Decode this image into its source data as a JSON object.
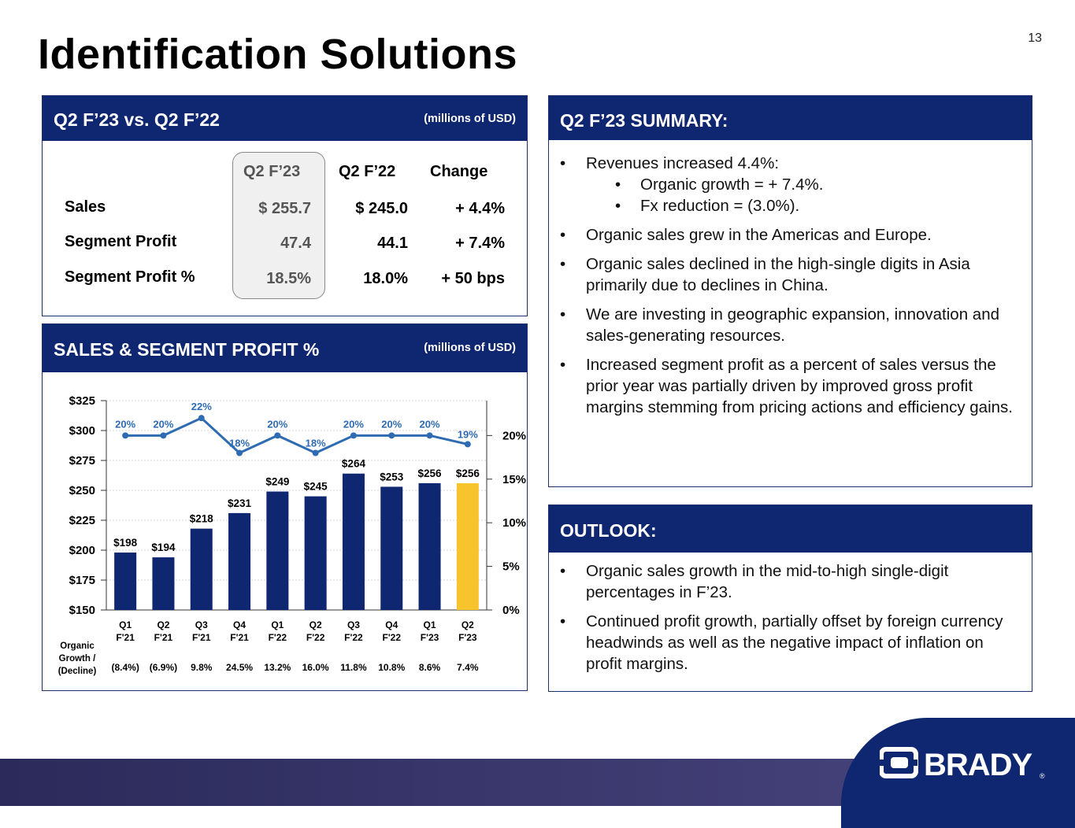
{
  "page_title": "Identification Solutions",
  "page_number": "13",
  "comparison": {
    "heading": "Q2 F’23 vs. Q2 F’22",
    "unit": "(millions of USD)",
    "columns": [
      "Q2 F’23",
      "Q2 F’22",
      "Change"
    ],
    "rows": [
      {
        "label": "Sales",
        "current": "$ 255.7",
        "prior": "$ 245.0",
        "change": "+ 4.4%"
      },
      {
        "label": "Segment Profit",
        "current": "47.4",
        "prior": "44.1",
        "change": "+ 7.4%"
      },
      {
        "label": "Segment Profit %",
        "current": "18.5%",
        "prior": "18.0%",
        "change": "+ 50 bps"
      }
    ]
  },
  "sales_panel": {
    "heading": "SALES & SEGMENT PROFIT %",
    "unit": "(millions of USD)"
  },
  "chart_data": {
    "type": "bar",
    "categories": [
      [
        "Q1",
        "F'21"
      ],
      [
        "Q2",
        "F'21"
      ],
      [
        "Q3",
        "F'21"
      ],
      [
        "Q4",
        "F'21"
      ],
      [
        "Q1",
        "F'22"
      ],
      [
        "Q2",
        "F'22"
      ],
      [
        "Q3",
        "F'22"
      ],
      [
        "Q4",
        "F'22"
      ],
      [
        "Q1",
        "F'23"
      ],
      [
        "Q2",
        "F'23"
      ]
    ],
    "series": [
      {
        "type": "bar",
        "values": [
          198,
          194,
          218,
          231,
          249,
          245,
          264,
          253,
          256,
          256
        ],
        "labels": [
          "$198",
          "$194",
          "$218",
          "$231",
          "$249",
          "$245",
          "$264",
          "$253",
          "$256",
          "$256"
        ],
        "color": "#0f2670",
        "highlight_color": "#f7c42d",
        "highlight_index": 9
      },
      {
        "type": "line",
        "axis": "right",
        "values": [
          20,
          20,
          22,
          18,
          20,
          18,
          20,
          20,
          20,
          19
        ],
        "labels": [
          "20%",
          "20%",
          "22%",
          "18%",
          "20%",
          "18%",
          "20%",
          "20%",
          "20%",
          "19%"
        ],
        "color": "#2e6bb3"
      }
    ],
    "y_left": {
      "ylim": [
        150,
        325
      ],
      "ticks": [
        "$150",
        "$175",
        "$200",
        "$225",
        "$250",
        "$275",
        "$300",
        "$325"
      ]
    },
    "y_right": {
      "ylim": [
        0,
        24
      ],
      "ticks": [
        "0%",
        "5%",
        "10%",
        "15%",
        "20%"
      ]
    },
    "organic_growth_label": [
      "Organic",
      "Growth /",
      "(Decline)"
    ],
    "organic_growth": [
      "(8.4%)",
      "(6.9%)",
      "9.8%",
      "24.5%",
      "13.2%",
      "16.0%",
      "11.8%",
      "10.8%",
      "8.6%",
      "7.4%"
    ],
    "grid": true
  },
  "summary": {
    "heading": "Q2 F’23 SUMMARY:",
    "bullets": [
      "Revenues increased 4.4%:",
      "Organic sales grew in the Americas and Europe.",
      "Organic sales declined in the high-single digits in Asia primarily due to declines in China.",
      "We are investing in geographic expansion, innovation and sales-generating resources.",
      "Increased segment profit as a percent of sales versus the prior year was partially driven by improved gross profit margins stemming from pricing actions and efficiency gains."
    ],
    "sub_bullets": [
      "Organic growth = + 7.4%.",
      "Fx reduction = (3.0%)."
    ]
  },
  "outlook": {
    "heading": "OUTLOOK:",
    "bullets": [
      "Organic sales growth in the mid-to-high single-digit percentages in F’23.",
      "Continued profit growth, partially offset by foreign currency headwinds as well as the negative impact of inflation on profit margins."
    ]
  },
  "logo": {
    "text": "BRADY",
    "mark": "®"
  },
  "colors": {
    "navy": "#0f2670",
    "line_blue": "#2e6bb3",
    "highlight": "#f7c42d"
  }
}
